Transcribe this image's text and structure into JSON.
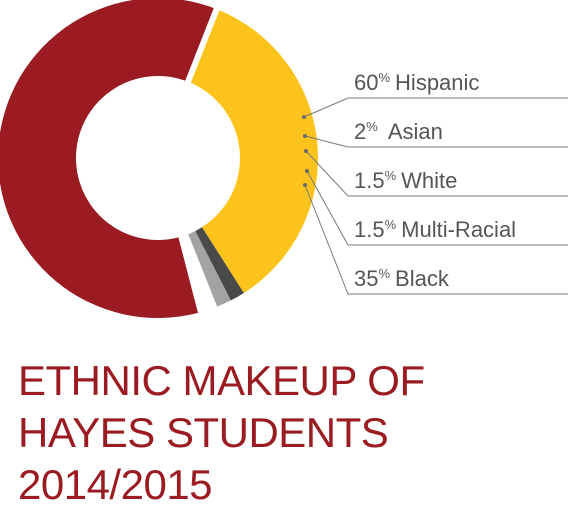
{
  "chart_data": {
    "type": "pie",
    "style": "donut",
    "title": [
      "ETHNIC MAKEUP OF",
      "HAYES STUDENTS",
      "2014/2015"
    ],
    "slices": [
      {
        "category": "Hispanic",
        "value": 60,
        "pct": "60",
        "name": "Hispanic",
        "color": "#9a1c22"
      },
      {
        "category": "Asian",
        "value": 2,
        "pct": "2",
        "name": "Asian",
        "color": "#ffffff"
      },
      {
        "category": "White",
        "value": 1.5,
        "pct": "1.5",
        "name": "White",
        "color": "#a3a3a3"
      },
      {
        "category": "Multi-Racial",
        "value": 1.5,
        "pct": "1.5",
        "name": "Multi-Racial",
        "color": "#4a4a4a"
      },
      {
        "category": "Black",
        "value": 35,
        "pct": "35",
        "name": "Black",
        "color": "#fcc31c"
      }
    ],
    "percent_sign": "%",
    "legend_position": "right"
  }
}
